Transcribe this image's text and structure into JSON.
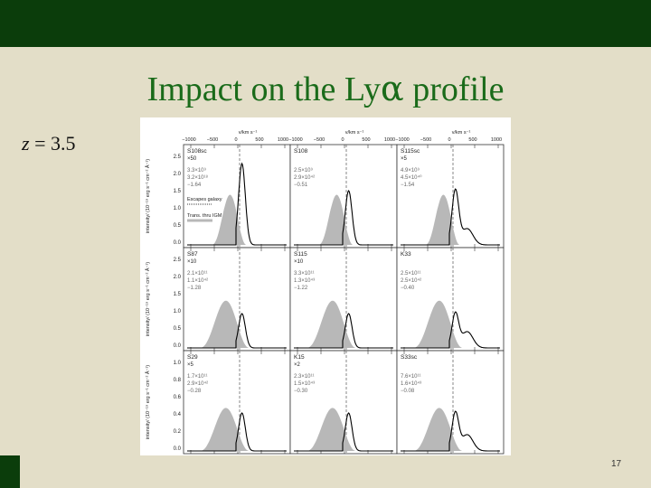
{
  "slide": {
    "title_prefix": "Impact on the Ly",
    "title_greek": "α",
    "title_suffix": " profile",
    "z_var": "z",
    "z_rest": " = 3.5",
    "page_number": "17"
  },
  "colors": {
    "bar_green": "#0b3d0b",
    "title_green": "#1a6b1a",
    "background": "#e3dec8",
    "fill_gray": "#b8b8b8"
  },
  "figure": {
    "top_axis_unit": "v/km s⁻¹",
    "top_ticks": [
      "−1000",
      "−500",
      "0",
      "500",
      "1000"
    ],
    "bottom_ticks": [
      "1212",
      "1214",
      "1216",
      "1218",
      "1220"
    ],
    "x_label": "λ/Å",
    "y_labels": [
      "intensity/ (10⁻¹⁹ erg s⁻¹ cm⁻² Å⁻¹)",
      "intensity/ (10⁻¹⁹ erg s⁻¹ cm⁻² Å⁻¹)",
      "intensity/ (10⁻¹⁹ erg s⁻¹ cm⁻² Å⁻¹)"
    ],
    "y_ticks": [
      "0.0",
      "0.5",
      "1.0",
      "1.5",
      "2.0",
      "2.5"
    ],
    "row3_y_ticks": [
      "0.0",
      "0.2",
      "0.4",
      "0.6",
      "0.8",
      "1.0"
    ],
    "legend": [
      "Escapes galaxy",
      "Trans. thru IGM"
    ],
    "panels": [
      {
        "name": "S108sc",
        "mult": "×50",
        "lines": [
          "3.3×10⁹",
          "3.2×10¹⁸",
          "−1.64"
        ]
      },
      {
        "name": "S108",
        "mult": "",
        "lines": [
          "2.5×10⁹",
          "2.9×10⁴²",
          "−0.51"
        ]
      },
      {
        "name": "S115sc",
        "mult": "×5",
        "lines": [
          "4.9×10⁹",
          "4.5×10⁴⁰",
          "−1.54"
        ]
      },
      {
        "name": "S87",
        "mult": "×10",
        "lines": [
          "2.1×10¹¹",
          "1.1×10⁴²",
          "−1.28"
        ]
      },
      {
        "name": "S115",
        "mult": "×10",
        "lines": [
          "3.3×10¹¹",
          "1.3×10⁴³",
          "−1.22"
        ]
      },
      {
        "name": "K33",
        "mult": "",
        "lines": [
          "2.5×10¹¹",
          "2.5×10⁴²",
          "−0.40"
        ]
      },
      {
        "name": "S29",
        "mult": "×5",
        "lines": [
          "1.7×10¹¹",
          "2.9×10⁴²",
          "−0.28"
        ]
      },
      {
        "name": "K15",
        "mult": "×2",
        "lines": [
          "2.3×10¹¹",
          "1.5×10⁴³",
          "−0.30"
        ]
      },
      {
        "name": "S33sc",
        "mult": "",
        "lines": [
          "7.6×10¹¹",
          "1.6×10⁴³",
          "−0.08"
        ]
      }
    ]
  }
}
